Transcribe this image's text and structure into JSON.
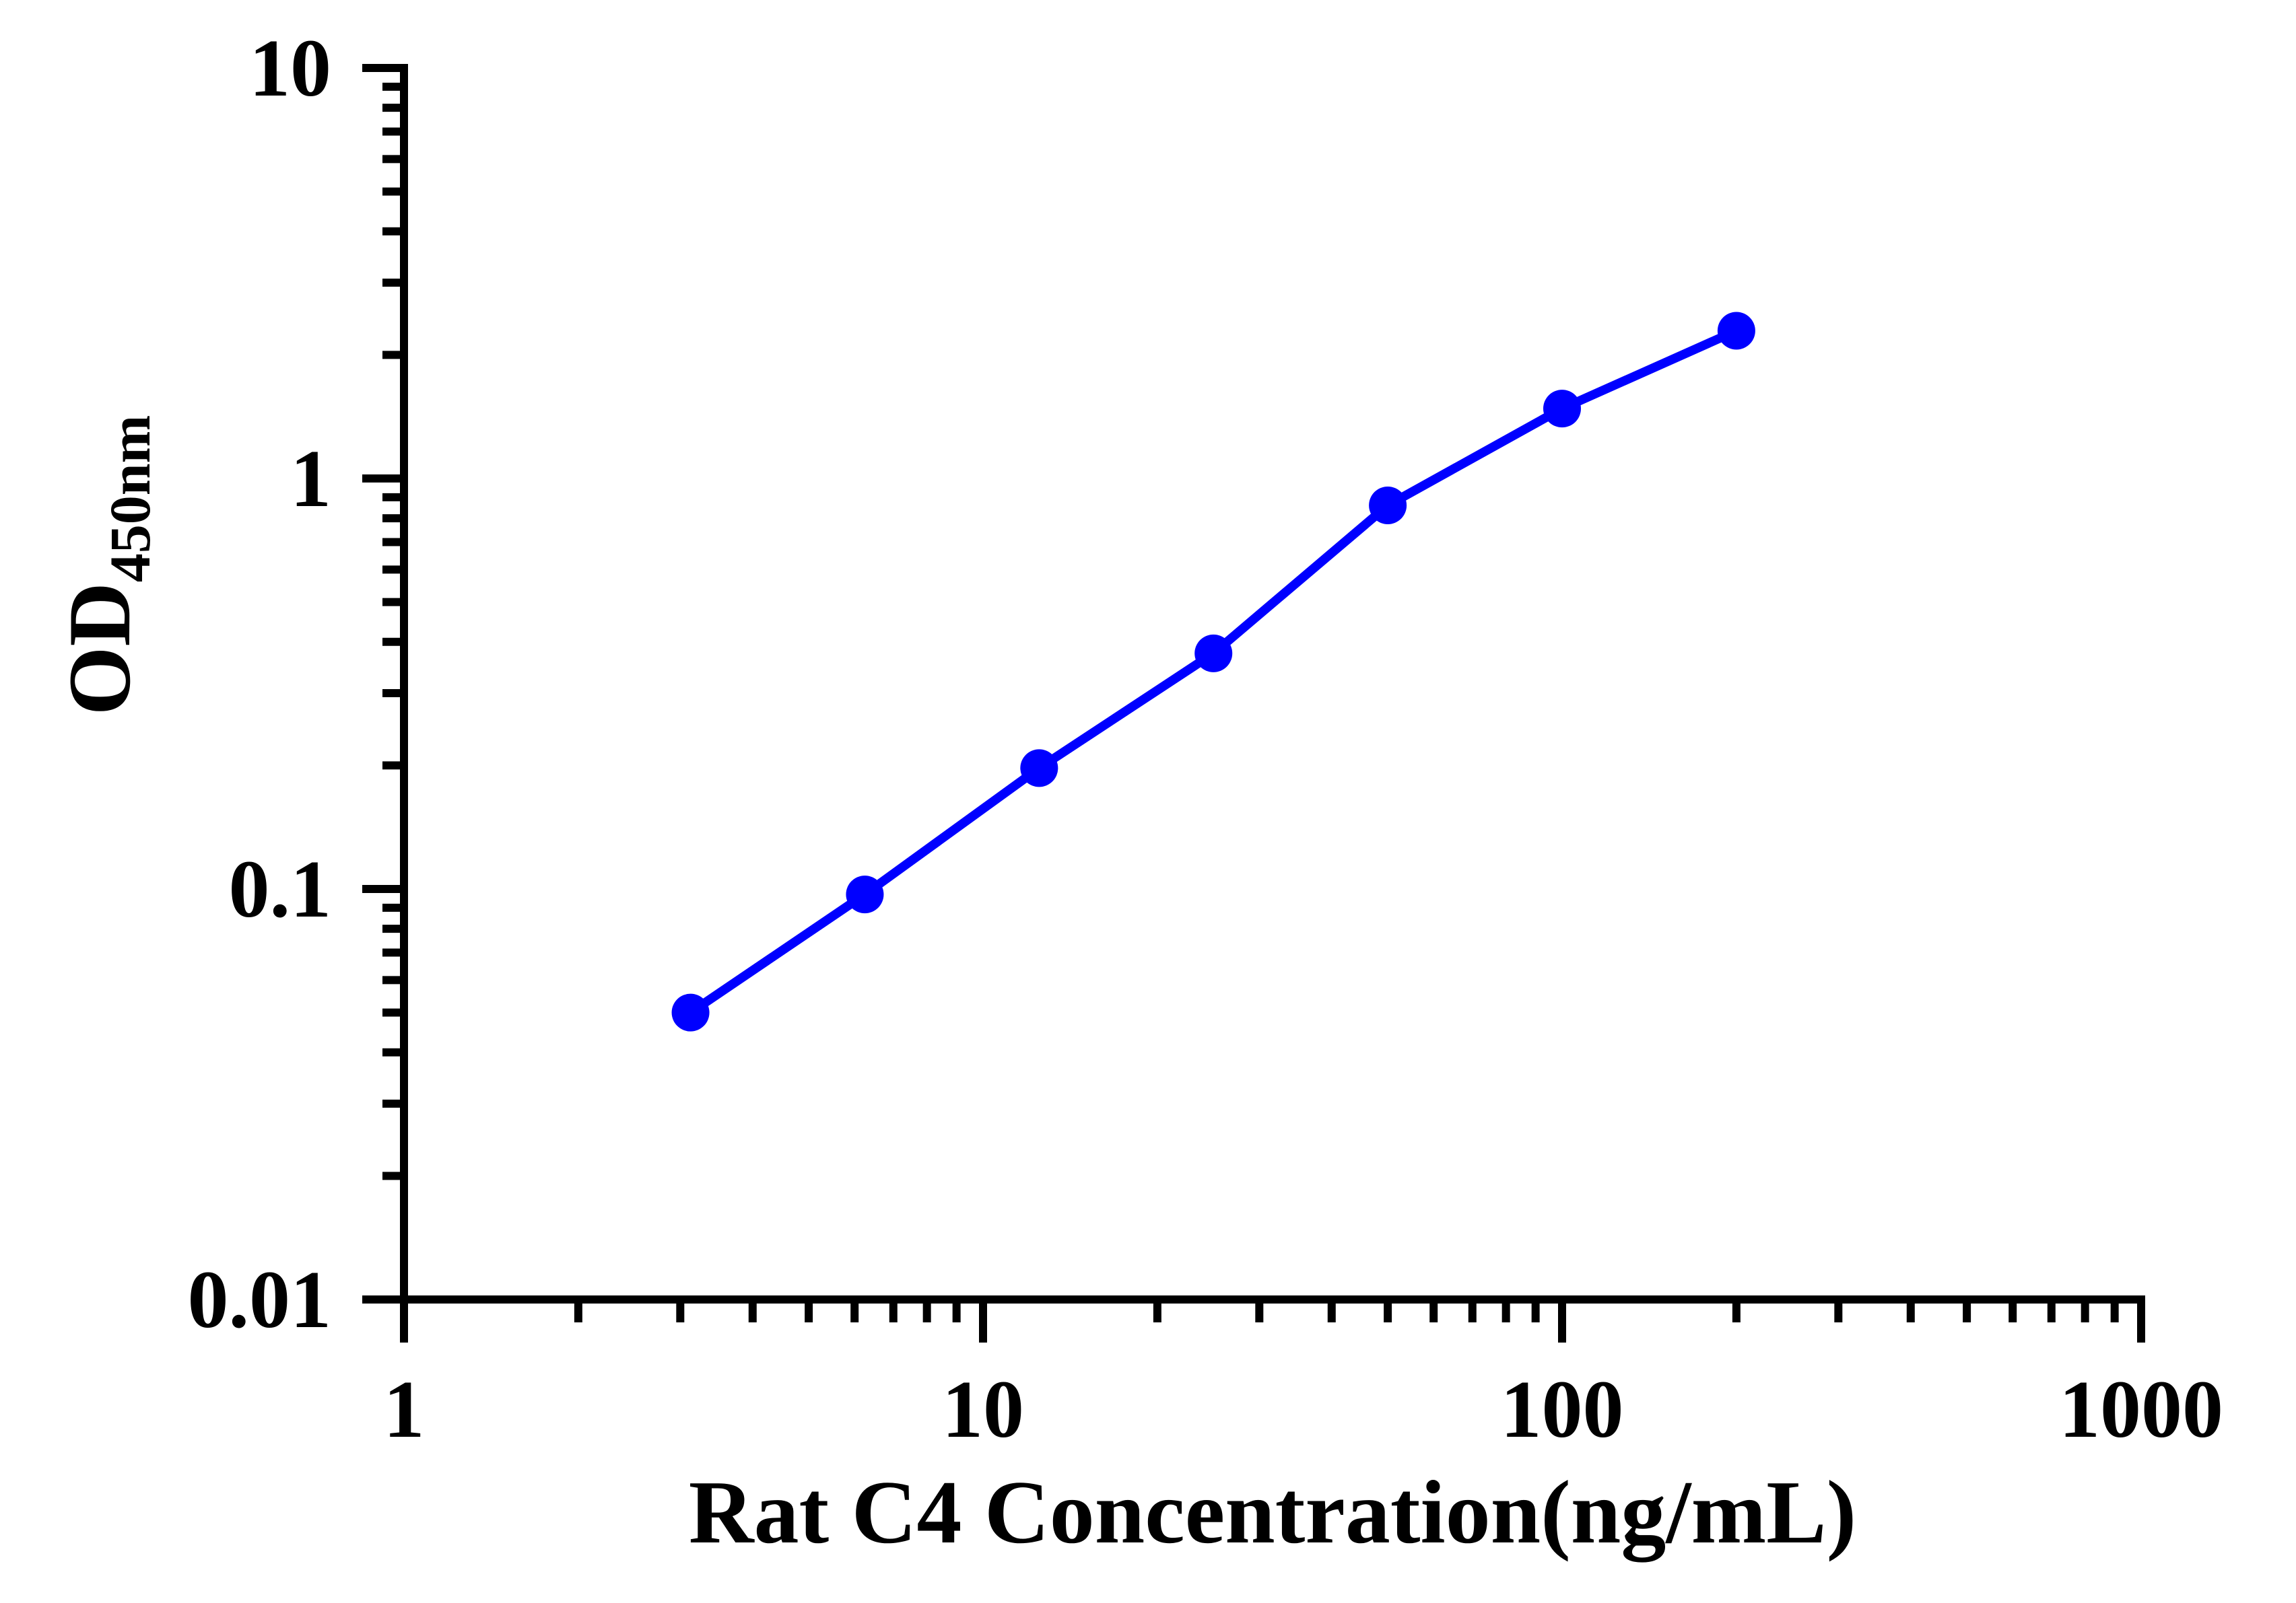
{
  "figure": {
    "background": "#FFFFFF"
  },
  "chart_data": {
    "type": "line",
    "xlabel": "Rat C4 Concentration(ng/mL)",
    "ylabel_base": "OD",
    "ylabel_sub": "450nm",
    "xscale": "log",
    "yscale": "log",
    "xlim": [
      1,
      1000
    ],
    "ylim": [
      0.01,
      10
    ],
    "x": [
      3.125,
      6.25,
      12.5,
      25,
      50,
      100,
      200
    ],
    "y": [
      0.05,
      0.097,
      0.197,
      0.375,
      0.86,
      1.48,
      2.29
    ],
    "x_major_ticks": [
      {
        "value": 1,
        "label": "1"
      },
      {
        "value": 10,
        "label": "10"
      },
      {
        "value": 100,
        "label": "100"
      },
      {
        "value": 1000,
        "label": "1000"
      }
    ],
    "y_major_ticks": [
      {
        "value": 0.01,
        "label": "0.01"
      },
      {
        "value": 0.1,
        "label": "0.1"
      },
      {
        "value": 1,
        "label": "1"
      },
      {
        "value": 10,
        "label": "10"
      }
    ],
    "grid": false,
    "legend": "none",
    "line_color": "#0000FF",
    "marker": "circle",
    "axis_color": "#000000"
  }
}
